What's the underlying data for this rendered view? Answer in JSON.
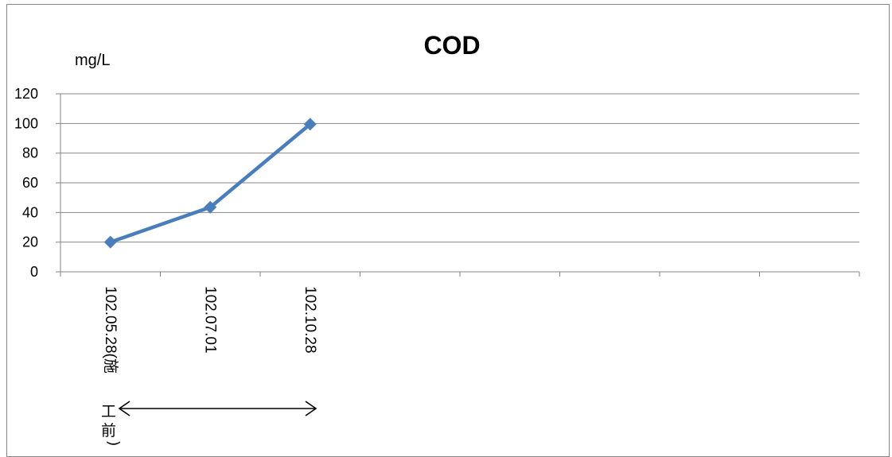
{
  "chart_data": {
    "type": "line",
    "title": "COD",
    "ylabel": "mg/L",
    "xlabel": "",
    "categories": [
      "102.05.28(施工前)",
      "102.07.01",
      "102.10.28",
      "",
      "",
      "",
      "",
      ""
    ],
    "series": [
      {
        "values": [
          20,
          43.5,
          99.5,
          null,
          null,
          null,
          null,
          null
        ],
        "color": "#4a7ebb"
      }
    ],
    "ylim": [
      0,
      120
    ],
    "yticks": [
      0,
      20,
      40,
      60,
      80,
      100,
      120
    ],
    "grid": true,
    "legend": "none",
    "annotation": {
      "label_main": "102.05.28(施",
      "label_chars": [
        "工",
        "前"
      ],
      "label_end": ")",
      "arrow": "double-headed"
    },
    "colors": {
      "line": "#4a7ebb",
      "marker": "#4a7ebb",
      "grid": "#868686",
      "axis": "#868686"
    }
  }
}
